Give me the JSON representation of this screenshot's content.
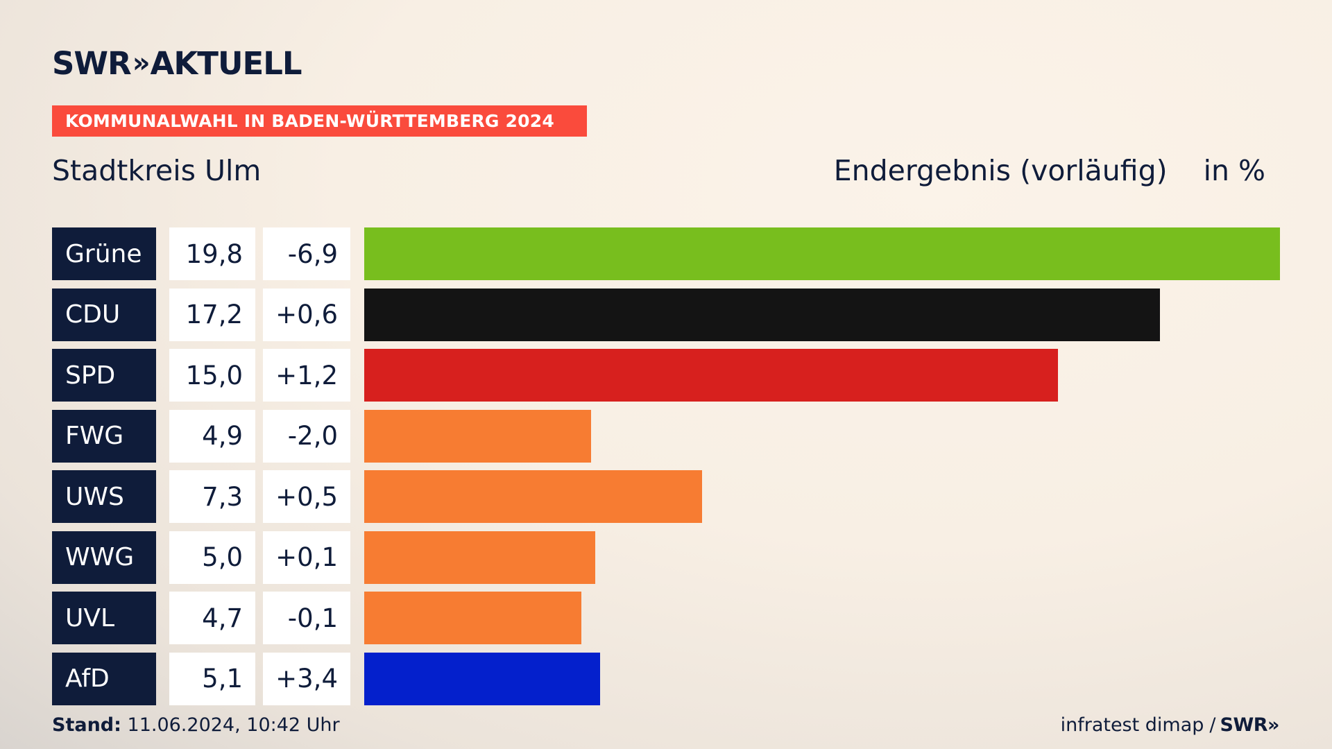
{
  "header": {
    "brand": "SWR",
    "brand_chevrons": "»",
    "brand_name": "AKTUELL",
    "banner": "KOMMUNALWAHL IN BADEN-WÜRTTEMBERG 2024",
    "subtitle": "Stadtkreis Ulm",
    "status": "Endergebnis (vorläufig)",
    "unit": "in %"
  },
  "footer": {
    "stand_label": "Stand:",
    "stand_value": "11.06.2024, 10:42 Uhr",
    "source": "infratest dimap",
    "separator": "/",
    "source_brand": "SWR»"
  },
  "chart_data": {
    "type": "bar",
    "orientation": "horizontal",
    "categories": [
      "Grüne",
      "CDU",
      "SPD",
      "FWG",
      "UWS",
      "WWG",
      "UVL",
      "AfD"
    ],
    "values": [
      19.8,
      17.2,
      15.0,
      4.9,
      7.3,
      5.0,
      4.7,
      5.1
    ],
    "value_labels": [
      "19,8",
      "17,2",
      "15,0",
      "4,9",
      "7,3",
      "5,0",
      "4,7",
      "5,1"
    ],
    "changes": [
      -6.9,
      0.6,
      1.2,
      -2.0,
      0.5,
      0.1,
      -0.1,
      3.4
    ],
    "change_labels": [
      "-6,9",
      "+0,6",
      "+1,2",
      "-2,0",
      "+0,5",
      "+0,1",
      "-0,1",
      "+3,4"
    ],
    "colors": [
      "#78be1e",
      "#141414",
      "#d7201e",
      "#f77c32",
      "#f77c32",
      "#f77c32",
      "#f77c32",
      "#0420cc"
    ],
    "xlim": [
      0,
      19.8
    ]
  }
}
